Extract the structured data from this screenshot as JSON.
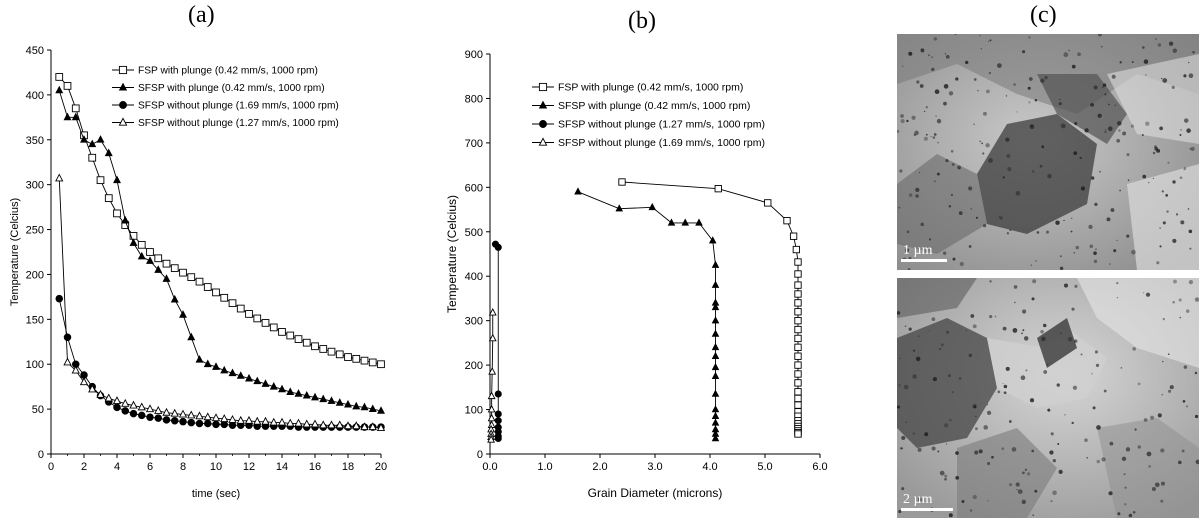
{
  "panels": {
    "a_label": "(a)",
    "b_label": "(b)",
    "c_label": "(c)"
  },
  "tem": {
    "top_scale": "1 µm",
    "bottom_scale": "2 µm"
  },
  "chart_data": [
    {
      "type": "line",
      "xlabel": "time (sec)",
      "ylabel": "Temperature (Celcius)",
      "xlim": [
        0,
        20
      ],
      "ylim": [
        0,
        450
      ],
      "xticks": [
        0,
        2,
        4,
        6,
        8,
        10,
        12,
        14,
        16,
        18,
        20
      ],
      "yticks": [
        0,
        50,
        100,
        150,
        200,
        250,
        300,
        350,
        400,
        450
      ],
      "xtick_labels": [
        "0",
        "2",
        "4",
        "6",
        "8",
        "10",
        "12",
        "14",
        "16",
        "18",
        "20"
      ],
      "ytick_labels": [
        "0",
        "50",
        "100",
        "150",
        "200",
        "250",
        "300",
        "350",
        "400",
        "450"
      ],
      "legend_position": "top-right",
      "grid": false,
      "series": [
        {
          "name": "FSP with plunge (0.42 mm/s, 1000 rpm)",
          "marker": "open-square",
          "x": [
            0.5,
            1,
            1.5,
            2,
            2.5,
            3,
            3.5,
            4,
            4.5,
            5,
            5.5,
            6,
            6.5,
            7,
            7.5,
            8,
            8.5,
            9,
            9.5,
            10,
            10.5,
            11,
            11.5,
            12,
            12.5,
            13,
            13.5,
            14,
            14.5,
            15,
            15.5,
            16,
            16.5,
            17,
            17.5,
            18,
            18.5,
            19,
            19.5,
            20
          ],
          "y": [
            420,
            410,
            385,
            355,
            330,
            305,
            285,
            268,
            255,
            243,
            233,
            225,
            218,
            212,
            207,
            202,
            197,
            192,
            186,
            180,
            174,
            168,
            162,
            156,
            151,
            146,
            141,
            136,
            132,
            128,
            124,
            120,
            117,
            114,
            111,
            108,
            106,
            104,
            102,
            100
          ]
        },
        {
          "name": "SFSP with plunge (0.42 mm/s, 1000 rpm)",
          "marker": "filled-triangle",
          "x": [
            0.5,
            1,
            1.5,
            2,
            2.5,
            3,
            3.5,
            4,
            4.5,
            5,
            5.5,
            6,
            6.5,
            7,
            7.5,
            8,
            8.5,
            9,
            9.5,
            10,
            10.5,
            11,
            11.5,
            12,
            12.5,
            13,
            13.5,
            14,
            14.5,
            15,
            15.5,
            16,
            16.5,
            17,
            17.5,
            18,
            18.5,
            19,
            19.5,
            20
          ],
          "y": [
            405,
            375,
            375,
            350,
            345,
            350,
            335,
            305,
            260,
            235,
            220,
            215,
            205,
            195,
            172,
            155,
            130,
            105,
            100,
            97,
            93,
            90,
            87,
            84,
            81,
            78,
            75,
            72,
            69,
            67,
            65,
            63,
            61,
            59,
            57,
            55,
            53,
            52,
            50,
            48
          ]
        },
        {
          "name": "SFSP without plunge (1.69 mm/s, 1000 rpm)",
          "marker": "filled-circle",
          "x": [
            0.5,
            1,
            1.5,
            2,
            2.5,
            3,
            3.5,
            4,
            4.5,
            5,
            5.5,
            6,
            6.5,
            7,
            7.5,
            8,
            8.5,
            9,
            9.5,
            10,
            10.5,
            11,
            11.5,
            12,
            12.5,
            13,
            13.5,
            14,
            14.5,
            15,
            15.5,
            16,
            16.5,
            17,
            17.5,
            18,
            18.5,
            19,
            19.5,
            20
          ],
          "y": [
            173,
            130,
            100,
            88,
            75,
            65,
            58,
            52,
            48,
            45,
            43,
            41,
            40,
            38,
            37,
            36,
            35,
            34,
            34,
            33,
            33,
            32,
            32,
            32,
            31,
            31,
            31,
            31,
            31,
            30,
            30,
            30,
            30,
            30,
            30,
            30,
            30,
            30,
            30,
            30
          ]
        },
        {
          "name": "SFSP without plunge (1.27 mm/s, 1000 rpm)",
          "marker": "open-triangle",
          "x": [
            0.5,
            1,
            1.5,
            2,
            2.5,
            3,
            3.5,
            4,
            4.5,
            5,
            5.5,
            6,
            6.5,
            7,
            7.5,
            8,
            8.5,
            9,
            9.5,
            10,
            10.5,
            11,
            11.5,
            12,
            12.5,
            13,
            13.5,
            14,
            14.5,
            15,
            15.5,
            16,
            16.5,
            17,
            17.5,
            18,
            18.5,
            19,
            19.5,
            20
          ],
          "y": [
            307,
            102,
            93,
            80,
            72,
            66,
            62,
            59,
            56,
            54,
            52,
            50,
            48,
            46,
            45,
            44,
            43,
            42,
            41,
            40,
            39,
            38,
            37,
            37,
            36,
            36,
            35,
            35,
            34,
            34,
            33,
            33,
            32,
            32,
            32,
            31,
            31,
            30,
            30,
            29
          ]
        }
      ]
    },
    {
      "type": "line",
      "xlabel": "Grain Diameter (microns)",
      "ylabel": "Temperature (Celcius)",
      "xlim": [
        0,
        6
      ],
      "ylim": [
        0,
        900
      ],
      "xticks": [
        0,
        1,
        2,
        3,
        4,
        5,
        6
      ],
      "yticks": [
        0,
        100,
        200,
        300,
        400,
        500,
        600,
        700,
        800,
        900
      ],
      "xtick_labels": [
        "0.0",
        "1.0",
        "2.0",
        "3.0",
        "4.0",
        "5.0",
        "6.0"
      ],
      "ytick_labels": [
        "0",
        "100",
        "200",
        "300",
        "400",
        "500",
        "600",
        "700",
        "800",
        "900"
      ],
      "legend_position": "top-right",
      "grid": false,
      "series": [
        {
          "name": "FSP with plunge (0.42 mm/s, 1000 rpm)",
          "marker": "open-square",
          "x": [
            2.4,
            4.15,
            5.05,
            5.4,
            5.52,
            5.57,
            5.6,
            5.6,
            5.6,
            5.6,
            5.6,
            5.6,
            5.6,
            5.6,
            5.6,
            5.6,
            5.6,
            5.6,
            5.6,
            5.6,
            5.6,
            5.6,
            5.6,
            5.6,
            5.6,
            5.6,
            5.6,
            5.6,
            5.6,
            5.6,
            5.6,
            5.6
          ],
          "y": [
            612,
            597,
            565,
            525,
            490,
            460,
            432,
            405,
            380,
            360,
            340,
            320,
            300,
            280,
            260,
            240,
            220,
            200,
            180,
            160,
            140,
            125,
            110,
            95,
            85,
            75,
            68,
            62,
            57,
            52,
            48,
            45
          ]
        },
        {
          "name": "SFSP with plunge (0.42 mm/s, 1000 rpm)",
          "marker": "filled-triangle",
          "x": [
            1.6,
            2.35,
            2.95,
            3.3,
            3.55,
            3.8,
            4.05,
            4.1,
            4.1,
            4.1,
            4.1,
            4.1,
            4.1,
            4.1,
            4.1,
            4.1,
            4.1,
            4.1,
            4.1,
            4.1,
            4.1,
            4.1,
            4.1,
            4.1
          ],
          "y": [
            590,
            552,
            555,
            520,
            520,
            520,
            480,
            425,
            380,
            340,
            330,
            300,
            270,
            240,
            220,
            195,
            175,
            135,
            100,
            85,
            70,
            55,
            45,
            35
          ]
        },
        {
          "name": "SFSP without plunge (1.27 mm/s, 1000 rpm)",
          "marker": "filled-circle",
          "x": [
            0.1,
            0.15,
            0.15,
            0.15,
            0.15,
            0.15,
            0.15,
            0.15,
            0.15
          ],
          "y": [
            472,
            465,
            135,
            90,
            75,
            60,
            50,
            40,
            35
          ]
        },
        {
          "name": "SFSP without plunge (1.69 mm/s, 1000 rpm)",
          "marker": "open-triangle",
          "x": [
            0.05,
            0.05,
            0.04,
            0.03,
            0.03,
            0.03,
            0.03,
            0.02,
            0.02,
            0.02,
            0.02
          ],
          "y": [
            318,
            260,
            185,
            130,
            100,
            80,
            65,
            55,
            45,
            38,
            32
          ]
        }
      ]
    }
  ]
}
